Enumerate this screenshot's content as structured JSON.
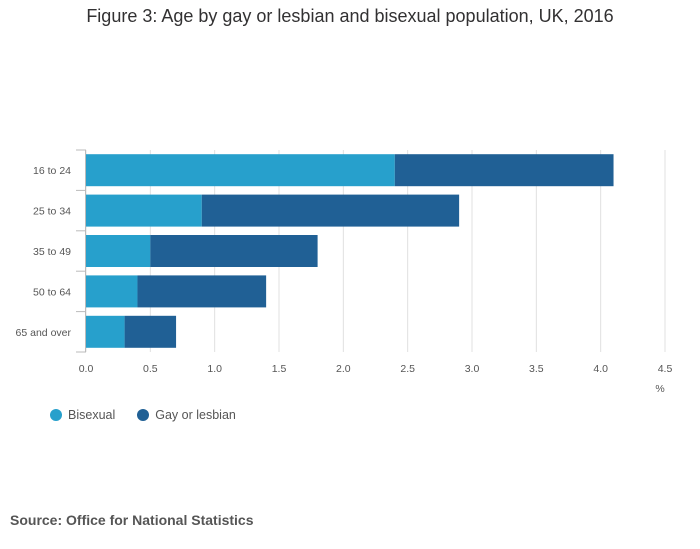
{
  "chart_data": {
    "type": "bar",
    "orientation": "horizontal",
    "stacked": true,
    "title": "Figure 3: Age by gay or lesbian and bisexual population, UK, 2016",
    "categories": [
      "16 to 24",
      "25 to 34",
      "35 to 49",
      "50 to 64",
      "65 and over"
    ],
    "series": [
      {
        "name": "Bisexual",
        "color": "#27a0cc",
        "values": [
          2.4,
          0.9,
          0.5,
          0.4,
          0.3
        ]
      },
      {
        "name": "Gay or lesbian",
        "color": "#206095",
        "values": [
          1.7,
          2.0,
          1.3,
          1.0,
          0.4
        ]
      }
    ],
    "xlim": [
      0,
      4.5
    ],
    "xticks": [
      "0.0",
      "0.5",
      "1.0",
      "1.5",
      "2.0",
      "2.5",
      "3.0",
      "3.5",
      "4.0",
      "4.5"
    ],
    "xlabel": "%",
    "ylabel": "",
    "grid": true,
    "legend_position": "bottom-left"
  },
  "source": "Source: Office for National Statistics"
}
